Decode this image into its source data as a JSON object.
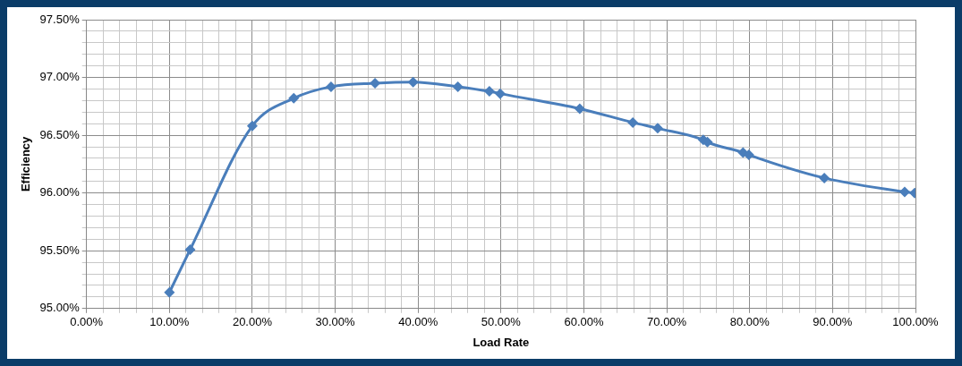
{
  "chart_data": {
    "type": "line",
    "xlabel": "Load Rate",
    "ylabel": "Efficiency",
    "series": [
      {
        "color": "#4a7ebb",
        "x": [
          10,
          12.5,
          20,
          25,
          29.5,
          34.8,
          39.4,
          44.8,
          48.6,
          49.9,
          59.5,
          65.9,
          68.9,
          74.4,
          74.9,
          79.2,
          79.9,
          89,
          98.7,
          99.9
        ],
        "values": [
          95.14,
          95.51,
          96.58,
          96.82,
          96.92,
          96.95,
          96.96,
          96.92,
          96.88,
          96.86,
          96.73,
          96.61,
          96.56,
          96.46,
          96.44,
          96.35,
          96.33,
          96.13,
          96.01,
          96.0
        ]
      }
    ],
    "xlim": [
      0,
      100
    ],
    "ylim": [
      95,
      97.5
    ],
    "xticks": [
      {
        "value": 0,
        "label": "0.00%"
      },
      {
        "value": 2,
        "label": null
      },
      {
        "value": 4,
        "label": null
      },
      {
        "value": 6,
        "label": null
      },
      {
        "value": 8,
        "label": null
      },
      {
        "value": 10,
        "label": "10.00%"
      },
      {
        "value": 12,
        "label": null
      },
      {
        "value": 14,
        "label": null
      },
      {
        "value": 16,
        "label": null
      },
      {
        "value": 18,
        "label": null
      },
      {
        "value": 20,
        "label": "20.00%"
      },
      {
        "value": 22,
        "label": null
      },
      {
        "value": 24,
        "label": null
      },
      {
        "value": 26,
        "label": null
      },
      {
        "value": 28,
        "label": null
      },
      {
        "value": 30,
        "label": "30.00%"
      },
      {
        "value": 32,
        "label": null
      },
      {
        "value": 34,
        "label": null
      },
      {
        "value": 36,
        "label": null
      },
      {
        "value": 38,
        "label": null
      },
      {
        "value": 40,
        "label": "40.00%"
      },
      {
        "value": 42,
        "label": null
      },
      {
        "value": 44,
        "label": null
      },
      {
        "value": 46,
        "label": null
      },
      {
        "value": 48,
        "label": null
      },
      {
        "value": 50,
        "label": "50.00%"
      },
      {
        "value": 52,
        "label": null
      },
      {
        "value": 54,
        "label": null
      },
      {
        "value": 56,
        "label": null
      },
      {
        "value": 58,
        "label": null
      },
      {
        "value": 60,
        "label": "60.00%"
      },
      {
        "value": 62,
        "label": null
      },
      {
        "value": 64,
        "label": null
      },
      {
        "value": 66,
        "label": null
      },
      {
        "value": 68,
        "label": null
      },
      {
        "value": 70,
        "label": "70.00%"
      },
      {
        "value": 72,
        "label": null
      },
      {
        "value": 74,
        "label": null
      },
      {
        "value": 76,
        "label": null
      },
      {
        "value": 78,
        "label": null
      },
      {
        "value": 80,
        "label": "80.00%"
      },
      {
        "value": 82,
        "label": null
      },
      {
        "value": 84,
        "label": null
      },
      {
        "value": 86,
        "label": null
      },
      {
        "value": 88,
        "label": null
      },
      {
        "value": 90,
        "label": "90.00%"
      },
      {
        "value": 92,
        "label": null
      },
      {
        "value": 94,
        "label": null
      },
      {
        "value": 96,
        "label": null
      },
      {
        "value": 98,
        "label": null
      },
      {
        "value": 100,
        "label": "100.00%"
      }
    ],
    "yticks": [
      {
        "value": 95,
        "label": "95.00%"
      },
      {
        "value": 95.1,
        "label": null
      },
      {
        "value": 95.2,
        "label": null
      },
      {
        "value": 95.3,
        "label": null
      },
      {
        "value": 95.4,
        "label": null
      },
      {
        "value": 95.5,
        "label": "95.50%"
      },
      {
        "value": 95.6,
        "label": null
      },
      {
        "value": 95.7,
        "label": null
      },
      {
        "value": 95.8,
        "label": null
      },
      {
        "value": 95.9,
        "label": null
      },
      {
        "value": 96,
        "label": "96.00%"
      },
      {
        "value": 96.1,
        "label": null
      },
      {
        "value": 96.2,
        "label": null
      },
      {
        "value": 96.3,
        "label": null
      },
      {
        "value": 96.4,
        "label": null
      },
      {
        "value": 96.5,
        "label": "96.50%"
      },
      {
        "value": 96.6,
        "label": null
      },
      {
        "value": 96.7,
        "label": null
      },
      {
        "value": 96.8,
        "label": null
      },
      {
        "value": 96.9,
        "label": null
      },
      {
        "value": 97,
        "label": "97.00%"
      },
      {
        "value": 97.1,
        "label": null
      },
      {
        "value": 97.2,
        "label": null
      },
      {
        "value": 97.3,
        "label": null
      },
      {
        "value": 97.4,
        "label": null
      },
      {
        "value": 97.5,
        "label": "97.50%"
      }
    ],
    "grid": true,
    "legend": false,
    "marker": "diamond",
    "line_style": "solid"
  }
}
